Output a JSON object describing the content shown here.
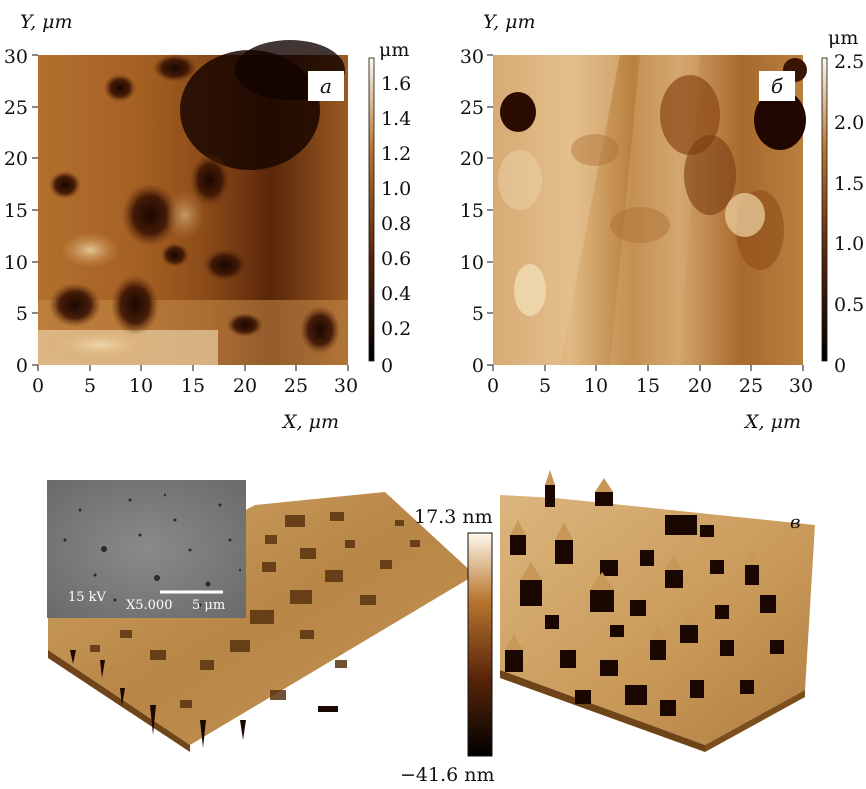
{
  "panel_a": {
    "y_label": "Y, μm",
    "x_label": "X, μm",
    "x_ticks": [
      "0",
      "5",
      "10",
      "15",
      "20",
      "25",
      "30"
    ],
    "y_ticks": [
      "0",
      "5",
      "10",
      "15",
      "20",
      "25",
      "30"
    ],
    "tag": "а",
    "colorbar_unit": "μm",
    "colorbar_ticks": [
      "0",
      "0.2",
      "0.4",
      "0.6",
      "0.8",
      "1.0",
      "1.2",
      "1.4",
      "1.6"
    ]
  },
  "panel_b": {
    "y_label": "Y, μm",
    "x_label": "X, μm",
    "x_ticks": [
      "0",
      "5",
      "10",
      "15",
      "20",
      "25",
      "30"
    ],
    "y_ticks": [
      "0",
      "5",
      "10",
      "15",
      "20",
      "25",
      "30"
    ],
    "tag": "б",
    "colorbar_unit": "μm",
    "colorbar_ticks": [
      "0",
      "0.5",
      "1.0",
      "1.5",
      "2.0",
      "2.5"
    ]
  },
  "panel_c": {
    "tag": "в",
    "colorbar_max": "17.3 nm",
    "colorbar_min": "−41.6 nm",
    "inset": {
      "voltage": "15 kV",
      "magnification": "X5.000",
      "scale": "5 μm"
    }
  },
  "colors": {
    "afm_dark": "#2a0e02",
    "afm_mid": "#a25a1c",
    "afm_light": "#e6c690",
    "sem_gray": "#7c7c7c"
  }
}
